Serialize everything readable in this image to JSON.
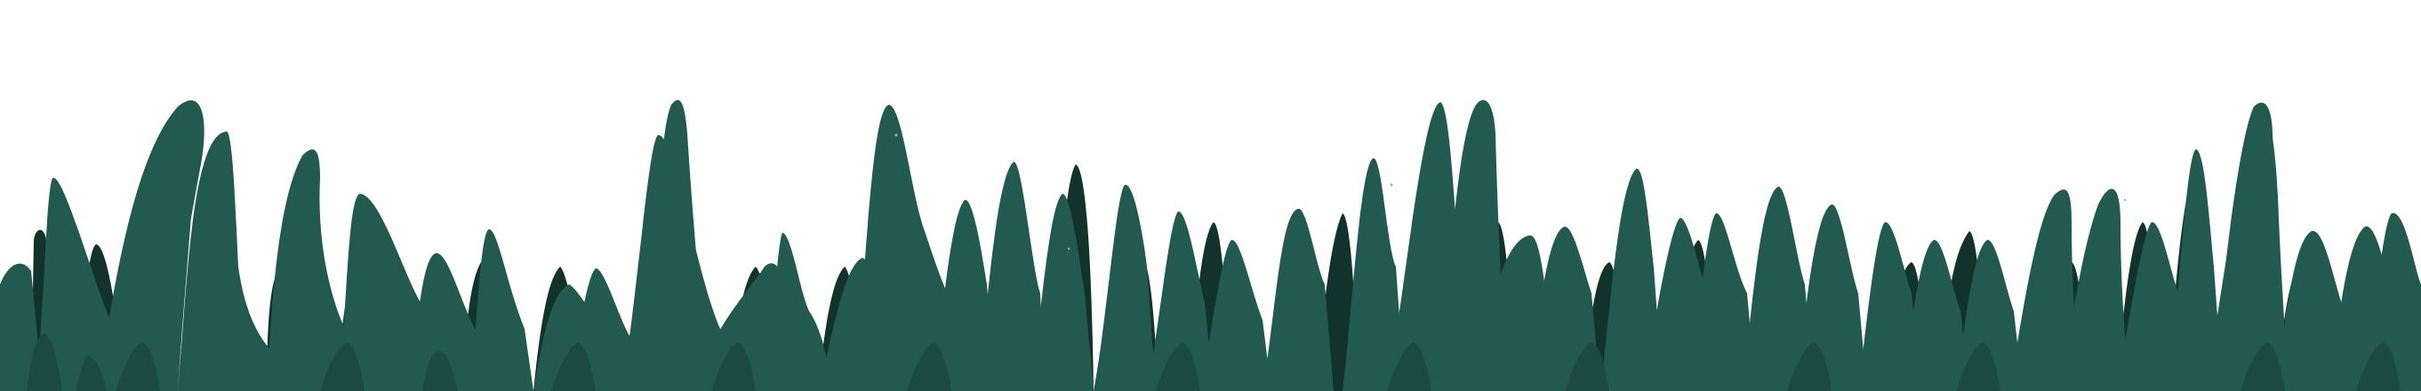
{
  "scene": {
    "subject": "grass-border",
    "colors": {
      "background": "#ffffff",
      "grass_back": "#12332b",
      "grass_front": "#225a4f",
      "grass_mid": "#1c4a40",
      "highlight": "#8fb7ad"
    }
  }
}
